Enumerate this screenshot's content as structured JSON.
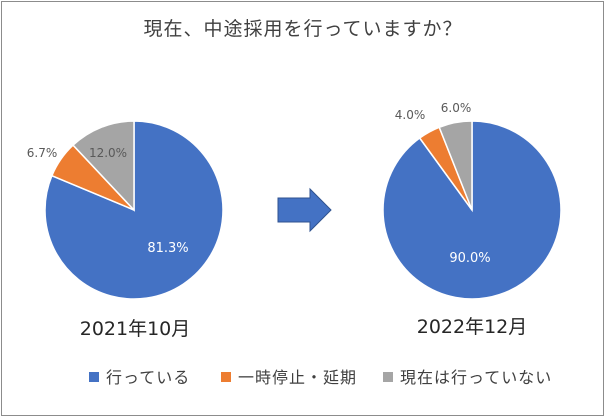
{
  "chart_data": {
    "type": "pie",
    "title": "現在、中途採用を行っていますか？",
    "legend": {
      "position": "bottom",
      "entries": [
        {
          "name": "行っている",
          "color": "#4472C4"
        },
        {
          "name": "一時停止・延期",
          "color": "#ED7D31"
        },
        {
          "name": "現在は行っていない",
          "color": "#A5A5A5"
        }
      ]
    },
    "pies": [
      {
        "label": "2021年10月",
        "slices": [
          {
            "name": "行っている",
            "value": 81.3,
            "display": "81.3%",
            "color": "#4472C4"
          },
          {
            "name": "一時停止・延期",
            "value": 6.7,
            "display": "6.7%",
            "color": "#ED7D31"
          },
          {
            "name": "現在は行っていない",
            "value": 12.0,
            "display": "12.0%",
            "color": "#A5A5A5"
          }
        ]
      },
      {
        "label": "2022年12月",
        "slices": [
          {
            "name": "行っている",
            "value": 90.0,
            "display": "90.0%",
            "color": "#4472C4"
          },
          {
            "name": "一時停止・延期",
            "value": 4.0,
            "display": "4.0%",
            "color": "#ED7D31"
          },
          {
            "name": "現在は行っていない",
            "value": 6.0,
            "display": "6.0%",
            "color": "#A5A5A5"
          }
        ]
      }
    ],
    "arrow": {
      "color": "#4472C4",
      "stroke": "#2F528F"
    }
  }
}
